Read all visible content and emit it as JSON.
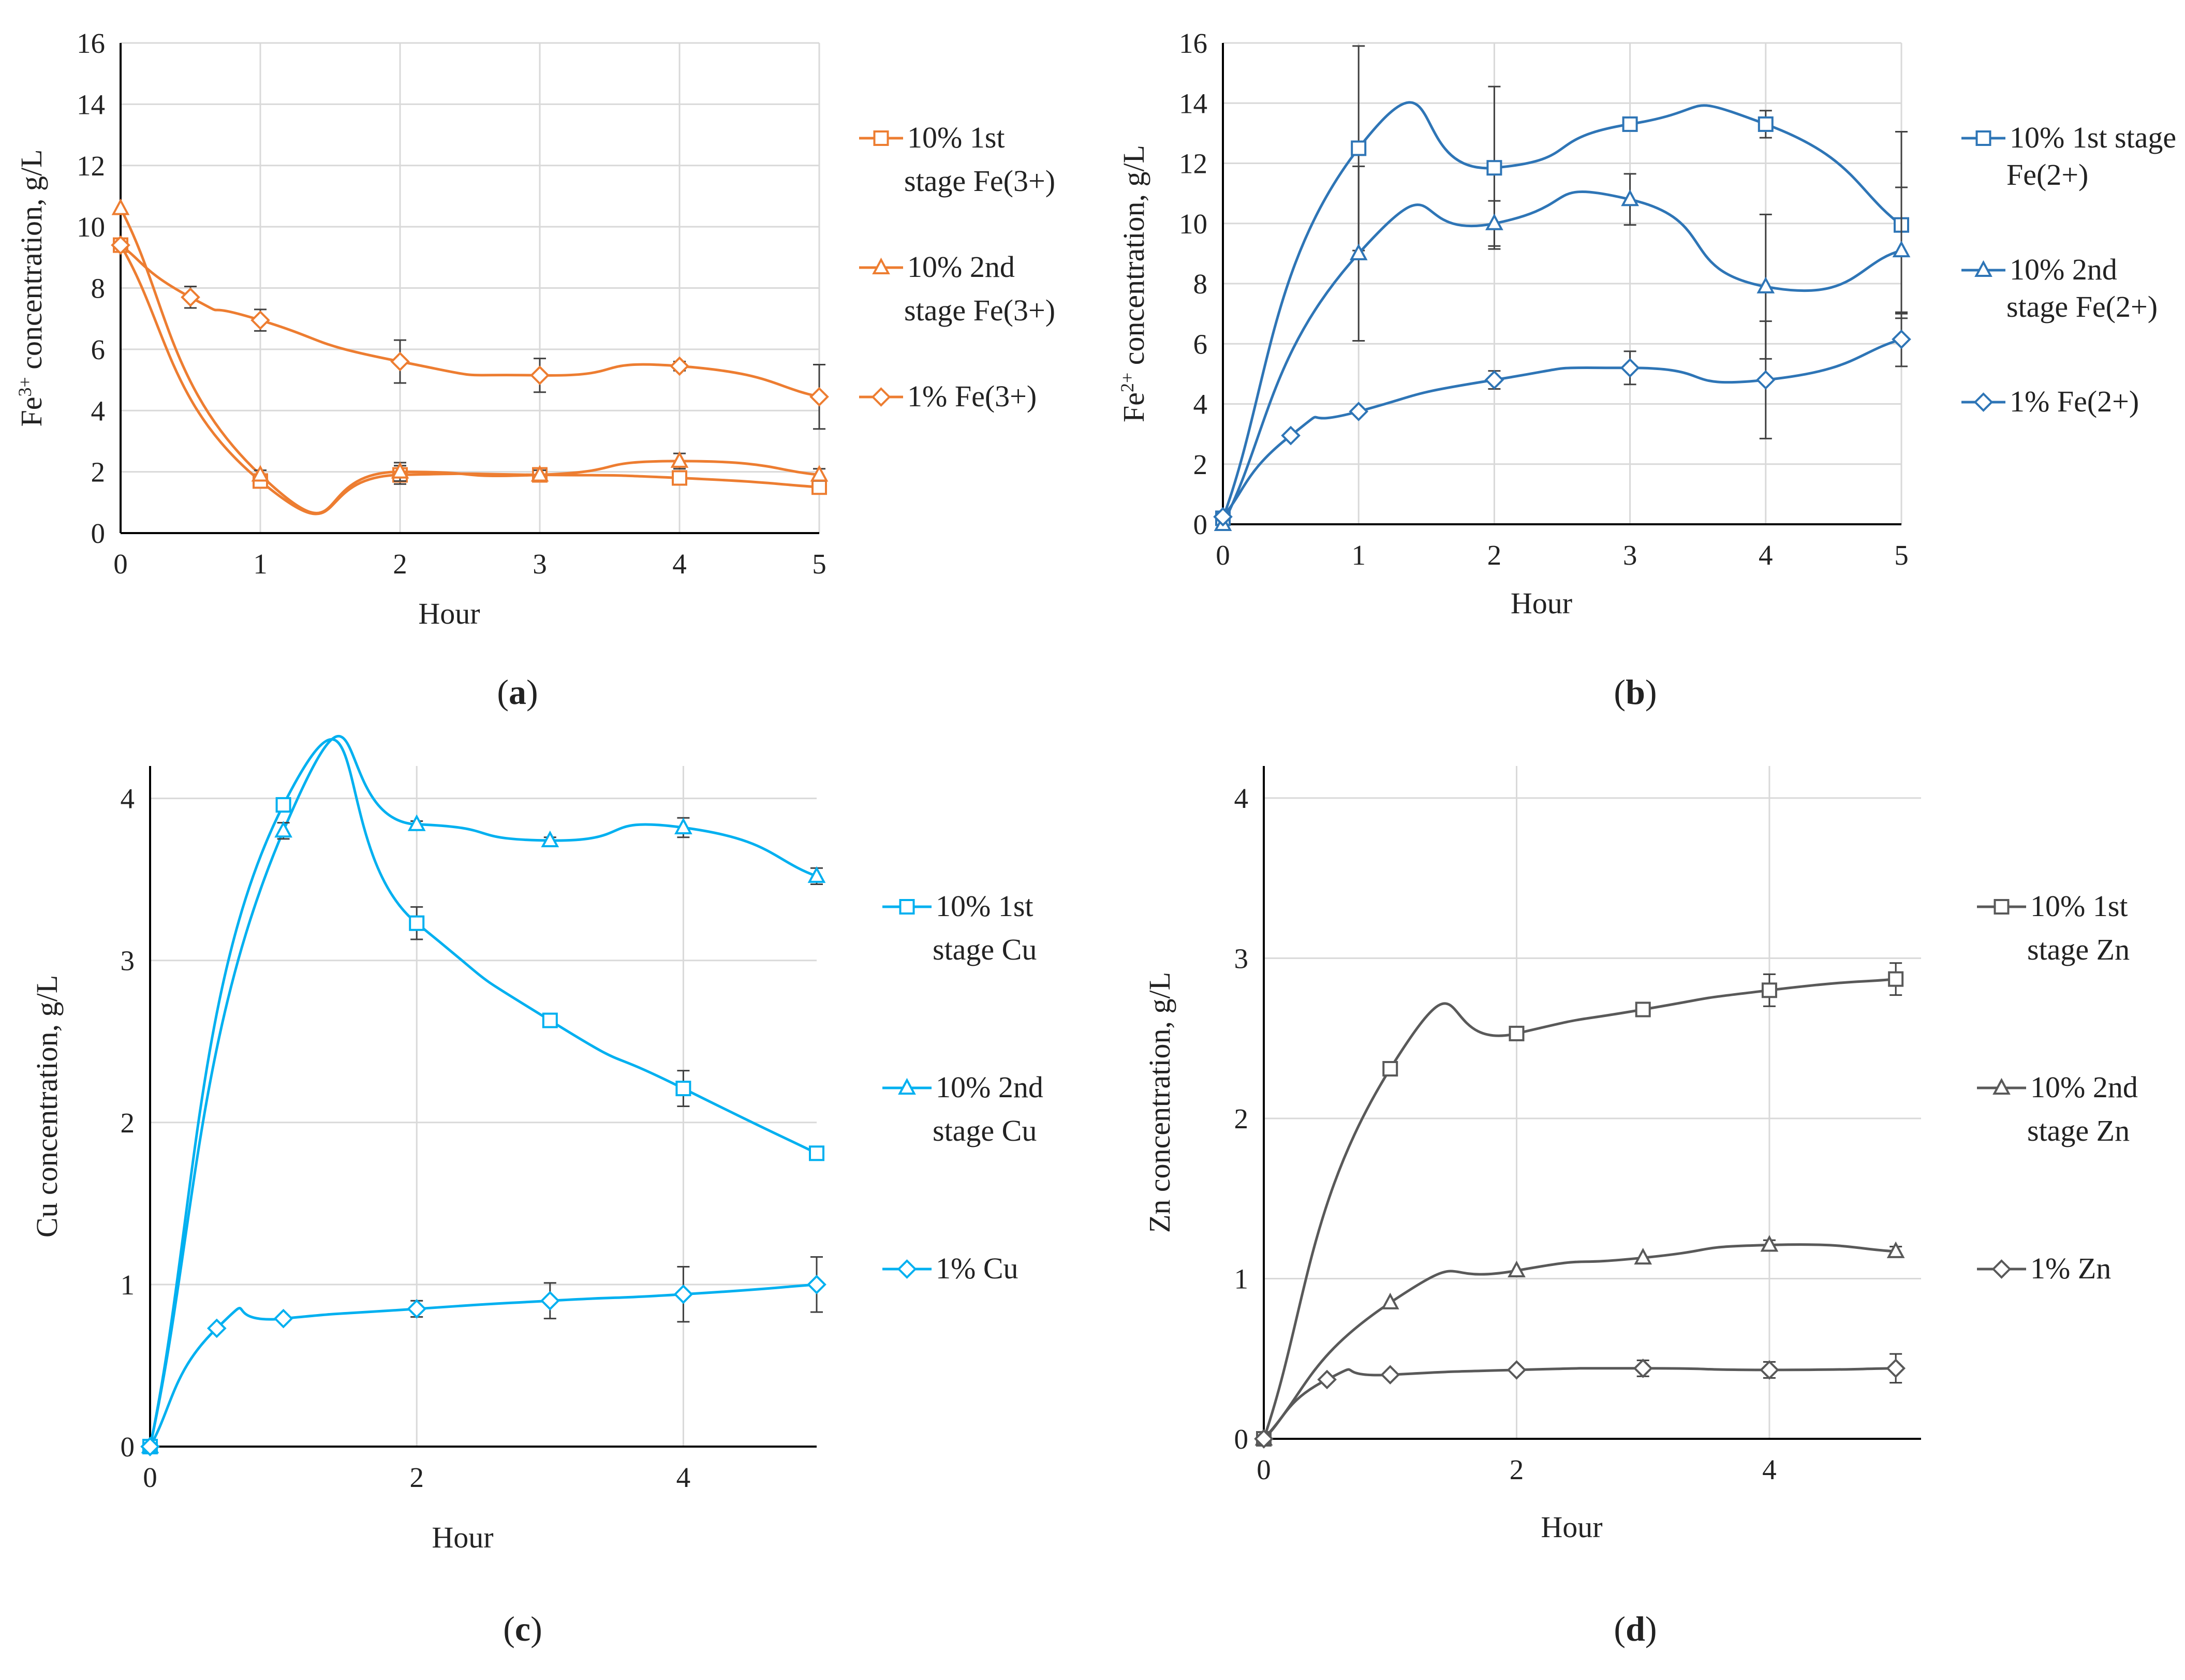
{
  "chart_data": [
    {
      "id": "a",
      "type": "line",
      "caption_letter": "a",
      "ylabel_parts": [
        "Fe",
        "3+",
        " concentration, g/L"
      ],
      "xlabel": "Hour",
      "color": "#ED7D31",
      "xlim": [
        0,
        5
      ],
      "ylim": [
        0,
        16
      ],
      "xticks": [
        "0",
        "1",
        "2",
        "3",
        "4",
        "5"
      ],
      "yticks": [
        "0",
        "2",
        "4",
        "6",
        "8",
        "10",
        "12",
        "14",
        "16"
      ],
      "series": [
        {
          "name_lines": [
            "10% 1st",
            "stage Fe(3+)"
          ],
          "marker": "square",
          "x": [
            0,
            1,
            2,
            3,
            4,
            5
          ],
          "y": [
            9.4,
            1.7,
            1.9,
            1.9,
            1.8,
            1.5
          ],
          "err": [
            0,
            0.15,
            0.3,
            0.15,
            0.15,
            0.1
          ]
        },
        {
          "name_lines": [
            "10% 2nd",
            "stage Fe(3+)"
          ],
          "marker": "triangle",
          "x": [
            0,
            1,
            2,
            3,
            4,
            5
          ],
          "y": [
            10.6,
            1.9,
            2.0,
            1.9,
            2.35,
            1.9
          ],
          "err": [
            0,
            0.15,
            0.3,
            0.15,
            0.25,
            0.2
          ]
        },
        {
          "name_lines": [
            "1% Fe(3+)"
          ],
          "marker": "diamond",
          "x": [
            0,
            0.5,
            1,
            2,
            3,
            4,
            5
          ],
          "y": [
            9.4,
            7.7,
            6.95,
            5.6,
            5.15,
            5.45,
            4.45
          ],
          "err": [
            0,
            0.35,
            0.35,
            0.7,
            0.55,
            0.15,
            1.05
          ]
        }
      ]
    },
    {
      "id": "b",
      "type": "line",
      "caption_letter": "b",
      "ylabel_parts": [
        "Fe",
        "2+",
        " concentration, g/L"
      ],
      "xlabel": "Hour",
      "color": "#2E75B6",
      "xlim": [
        0,
        5
      ],
      "ylim": [
        0,
        16
      ],
      "xticks": [
        "0",
        "1",
        "2",
        "3",
        "4",
        "5"
      ],
      "yticks": [
        "0",
        "2",
        "4",
        "6",
        "8",
        "10",
        "12",
        "14",
        "16"
      ],
      "series": [
        {
          "name_lines": [
            "10% 1st stage",
            "Fe(2+)"
          ],
          "marker": "square",
          "x": [
            0,
            1,
            2,
            3,
            4,
            5
          ],
          "y": [
            0.2,
            12.5,
            11.85,
            13.3,
            13.3,
            9.95
          ],
          "err": [
            0,
            3.4,
            2.7,
            0.1,
            0.45,
            3.1
          ]
        },
        {
          "name_lines": [
            "10% 2nd",
            "stage Fe(2+)"
          ],
          "marker": "triangle",
          "x": [
            0,
            1,
            2,
            3,
            4,
            5
          ],
          "y": [
            0.0,
            9.0,
            10.0,
            10.8,
            7.9,
            9.1
          ],
          "err": [
            0,
            2.9,
            0.75,
            0.85,
            2.4,
            2.1
          ]
        },
        {
          "name_lines": [
            "1% Fe(2+)"
          ],
          "marker": "diamond",
          "x": [
            0,
            0.5,
            1,
            2,
            3,
            4,
            5
          ],
          "y": [
            0.25,
            2.95,
            3.75,
            4.8,
            5.2,
            4.8,
            6.15
          ],
          "err": [
            0,
            0,
            0,
            0.3,
            0.55,
            1.95,
            0.9
          ]
        }
      ]
    },
    {
      "id": "c",
      "type": "line",
      "caption_letter": "c",
      "ylabel_parts": [
        "Cu concentration, g/L"
      ],
      "xlabel": "Hour",
      "color": "#00B0F0",
      "xlim": [
        0,
        5
      ],
      "ylim": [
        0,
        4.2
      ],
      "xticks_values": [
        0,
        2,
        4
      ],
      "xticks": [
        "0",
        "2",
        "4"
      ],
      "yticks_values": [
        0,
        1,
        2,
        3,
        4
      ],
      "yticks": [
        "0",
        "1",
        "2",
        "3",
        "4"
      ],
      "series": [
        {
          "name_lines": [
            "10% 1st",
            "stage Cu"
          ],
          "marker": "square",
          "x": [
            0,
            1,
            2,
            3,
            4,
            5
          ],
          "y": [
            0.0,
            3.96,
            3.23,
            2.63,
            2.21,
            1.81
          ],
          "err": [
            0,
            0,
            0.1,
            0.03,
            0.11,
            0
          ]
        },
        {
          "name_lines": [
            "10% 2nd",
            "stage Cu"
          ],
          "marker": "triangle",
          "x": [
            0,
            1,
            2,
            3,
            4,
            5
          ],
          "y": [
            0.0,
            3.8,
            3.84,
            3.74,
            3.82,
            3.52
          ],
          "err": [
            0,
            0.05,
            0.02,
            0.02,
            0.06,
            0.05
          ]
        },
        {
          "name_lines": [
            "1% Cu"
          ],
          "marker": "diamond",
          "x": [
            0,
            0.5,
            1,
            2,
            3,
            4,
            5
          ],
          "y": [
            0.0,
            0.73,
            0.79,
            0.85,
            0.9,
            0.94,
            1.0
          ],
          "err": [
            0,
            0,
            0,
            0.05,
            0.11,
            0.17,
            0.17
          ]
        }
      ]
    },
    {
      "id": "d",
      "type": "line",
      "caption_letter": "d",
      "ylabel_parts": [
        "Zn concentration, g/L"
      ],
      "xlabel": "Hour",
      "color": "#595959",
      "xlim": [
        0,
        5.2
      ],
      "ylim": [
        0,
        4.2
      ],
      "xticks_values": [
        0,
        2,
        4
      ],
      "xticks": [
        "0",
        "2",
        "4"
      ],
      "yticks_values": [
        0,
        1,
        2,
        3,
        4
      ],
      "yticks": [
        "0",
        "1",
        "2",
        "3",
        "4"
      ],
      "series": [
        {
          "name_lines": [
            "10% 1st",
            "stage Zn"
          ],
          "marker": "square",
          "x": [
            0,
            1,
            2,
            3,
            4,
            5
          ],
          "y": [
            0.0,
            2.31,
            2.53,
            2.68,
            2.8,
            2.87
          ],
          "err": [
            0,
            0.03,
            0.04,
            0.02,
            0.1,
            0.1
          ]
        },
        {
          "name_lines": [
            "10% 2nd",
            "stage Zn"
          ],
          "marker": "triangle",
          "x": [
            0,
            1,
            2,
            3,
            4,
            5
          ],
          "y": [
            0.0,
            0.85,
            1.05,
            1.13,
            1.21,
            1.17
          ],
          "err": [
            0,
            0,
            0,
            0,
            0.03,
            0.03
          ]
        },
        {
          "name_lines": [
            "1% Zn"
          ],
          "marker": "diamond",
          "x": [
            0,
            0.5,
            1,
            2,
            3,
            4,
            5
          ],
          "y": [
            0.0,
            0.37,
            0.4,
            0.43,
            0.44,
            0.43,
            0.44
          ],
          "err": [
            0,
            0,
            0,
            0,
            0.05,
            0.05,
            0.09
          ]
        }
      ]
    }
  ]
}
